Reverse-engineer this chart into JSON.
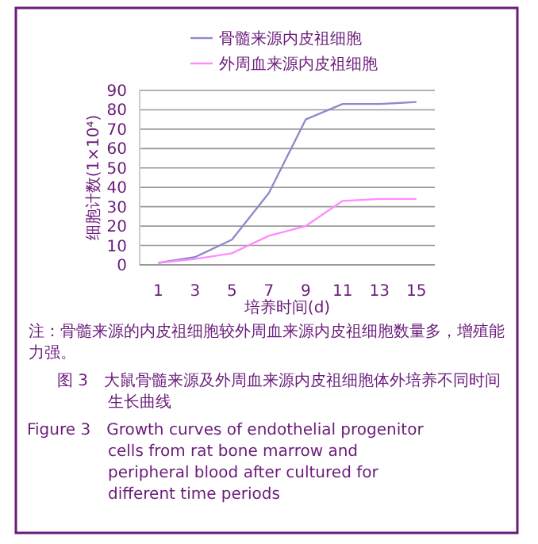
{
  "chart_data": {
    "type": "line",
    "ylabel": "细胞计数(1×10⁴)",
    "xlabel": "培养时间(d)",
    "x": [
      1,
      3,
      5,
      7,
      9,
      11,
      13,
      15
    ],
    "series": [
      {
        "name": "骨髓来源内皮祖细胞",
        "color": "#8c8ccc",
        "values": [
          1,
          4,
          13,
          37,
          75,
          83,
          83,
          84
        ]
      },
      {
        "name": "外周血来源内皮祖细胞",
        "color": "#ff8cff",
        "values": [
          1,
          3,
          6,
          15,
          20,
          33,
          34,
          34
        ]
      }
    ],
    "xlim": [
      0,
      16
    ],
    "xticks": [
      1,
      3,
      5,
      7,
      9,
      11,
      13,
      15
    ],
    "ylim": [
      0,
      90
    ],
    "yticks": [
      0,
      10,
      20,
      30,
      40,
      50,
      60,
      70,
      80,
      90
    ],
    "grid": "y",
    "legend": "top",
    "marker": "none",
    "line_style": "solid",
    "annotations": [
      "注：骨髓来源的内皮祖细胞较外周血来源内皮祖细胞数量多，增殖能力强。",
      "图 3　大鼠骨髓来源及外周血来源内皮祖细胞体外培养不同时间生长曲线",
      "Figure 3　Growth curves of endothelial progenitor cells from rat bone marrow and peripheral blood after cultured for different time periods"
    ]
  }
}
